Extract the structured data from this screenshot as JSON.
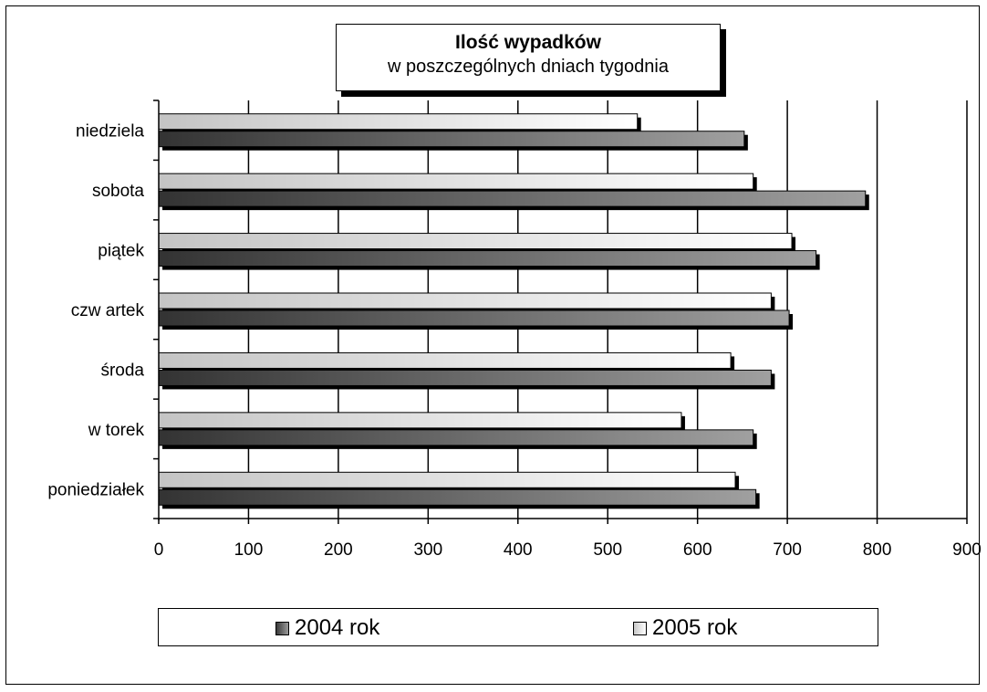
{
  "chart_data": {
    "type": "bar",
    "orientation": "horizontal",
    "title": "Ilość wypadków",
    "subtitle": "w poszczególnych  dniach tygodnia",
    "categories": [
      "poniedziałek",
      "w torek",
      "środa",
      "czw artek",
      "piątek",
      "sobota",
      "niedziela"
    ],
    "series": [
      {
        "name": "2004 rok",
        "values": [
          665,
          662,
          682,
          702,
          732,
          787,
          652
        ],
        "color": "#6e6e6e"
      },
      {
        "name": "2005 rok",
        "values": [
          642,
          582,
          637,
          682,
          705,
          662,
          533
        ],
        "color": "#e8e8e8"
      }
    ],
    "xlim": [
      0,
      900
    ],
    "xticks": [
      0,
      100,
      200,
      300,
      400,
      500,
      600,
      700,
      800,
      900
    ],
    "gridlines": "vertical, major",
    "legend_position": "bottom"
  }
}
